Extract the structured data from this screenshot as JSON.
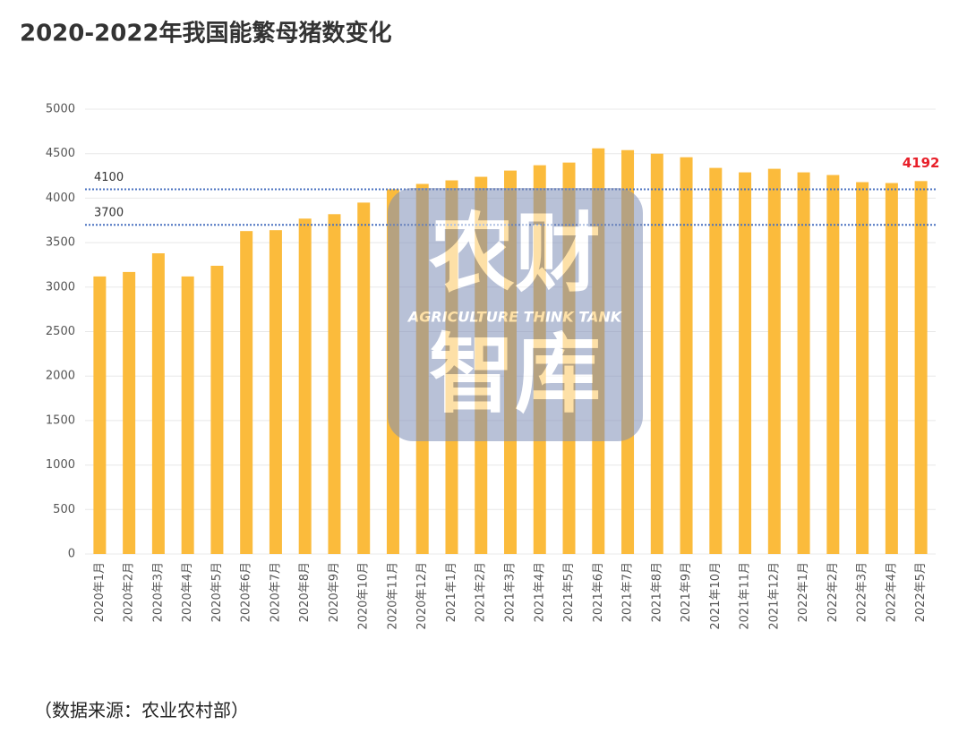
{
  "chart_data": {
    "type": "bar",
    "title": "2020-2022年我国能繁母猪数变化",
    "categories": [
      "2020年1月",
      "2020年2月",
      "2020年3月",
      "2020年4月",
      "2020年5月",
      "2020年6月",
      "2020年7月",
      "2020年8月",
      "2020年9月",
      "2020年10月",
      "2020年11月",
      "2020年12月",
      "2021年1月",
      "2021年2月",
      "2021年3月",
      "2021年4月",
      "2021年5月",
      "2021年6月",
      "2021年7月",
      "2021年8月",
      "2021年9月",
      "2021年10月",
      "2021年11月",
      "2021年12月",
      "2022年1月",
      "2022年2月",
      "2022年3月",
      "2022年4月",
      "2022年5月"
    ],
    "values": [
      3120,
      3170,
      3380,
      3120,
      3240,
      3630,
      3640,
      3770,
      3820,
      3950,
      4100,
      4160,
      4200,
      4240,
      4310,
      4370,
      4400,
      4560,
      4540,
      4500,
      4460,
      4340,
      4290,
      4330,
      4290,
      4260,
      4180,
      4170,
      4192
    ],
    "value_labels": [
      null,
      null,
      null,
      null,
      null,
      null,
      null,
      null,
      null,
      null,
      null,
      null,
      null,
      null,
      null,
      null,
      null,
      null,
      null,
      null,
      null,
      null,
      null,
      null,
      null,
      null,
      null,
      null,
      "4192"
    ],
    "value_label_color": "#e8202a",
    "color": "#fbbb3c",
    "ylim": [
      0,
      5000
    ],
    "yticks": [
      0,
      500,
      1000,
      1500,
      2000,
      2500,
      3000,
      3500,
      4000,
      4500,
      5000
    ],
    "grid": true,
    "reference_lines": [
      4100,
      3700
    ],
    "reference_color": "#4a72c0",
    "watermark": {
      "top": "农财",
      "middle": "AGRICULTURE  THINK TANK",
      "bottom": "智库"
    },
    "source": "（数据来源：农业农村部）"
  }
}
